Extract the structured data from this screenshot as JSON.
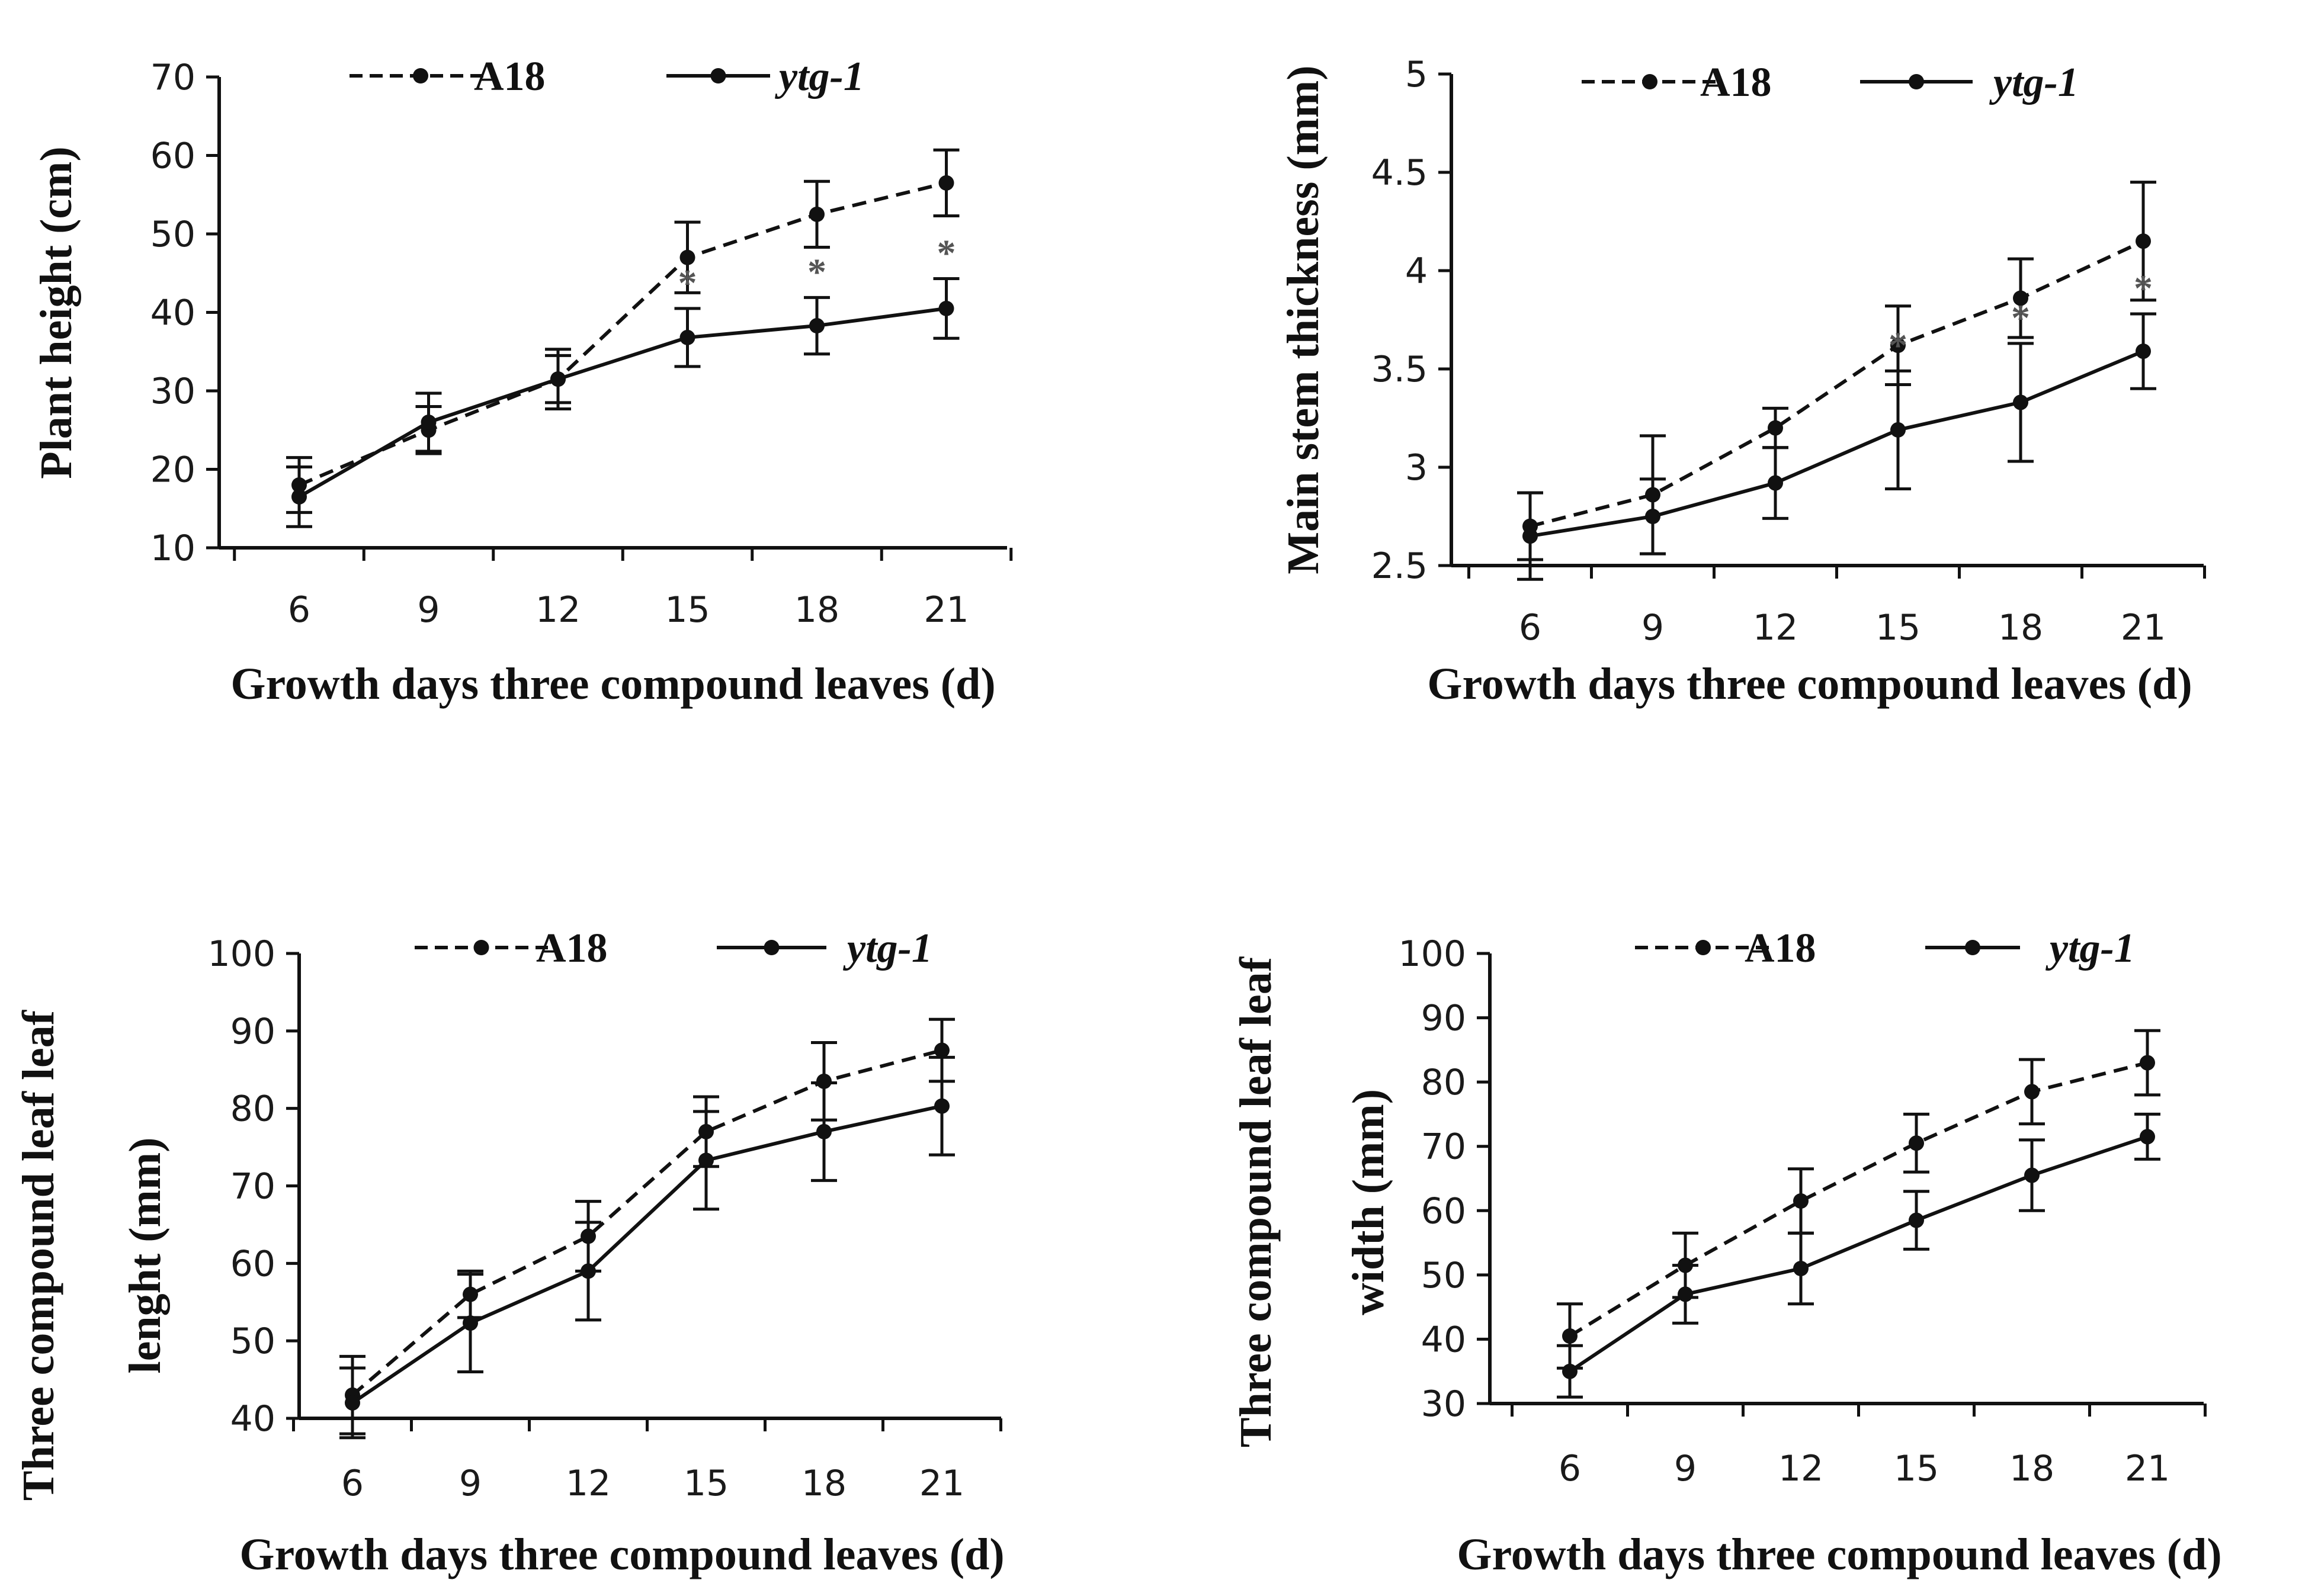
{
  "chart_data": [
    {
      "type": "line",
      "id": "height",
      "x": [
        6,
        9,
        12,
        15,
        18,
        21
      ],
      "xlabel": "Growth days three compound leaves (d)",
      "ylabel": [
        "Plant height (cm)"
      ],
      "ylim": [
        10,
        70
      ],
      "yticks": [
        10,
        20,
        30,
        40,
        50,
        60,
        70
      ],
      "legend": "top-center",
      "series": [
        {
          "name": "A18",
          "style": "dashed",
          "values": [
            18,
            25,
            31.5,
            47,
            52.5,
            56.5
          ],
          "err": [
            3.5,
            3,
            3,
            4.5,
            4.2,
            4.2
          ]
        },
        {
          "name": "ytg-1",
          "style": "solid",
          "italic": true,
          "values": [
            16.5,
            26,
            31.5,
            36.8,
            38.3,
            40.5
          ],
          "err": [
            3.8,
            3.7,
            3.8,
            3.7,
            3.6,
            3.8
          ]
        }
      ],
      "significance": [
        {
          "x": 15,
          "label": "*"
        },
        {
          "x": 18,
          "label": "*"
        },
        {
          "x": 21,
          "label": "*"
        }
      ]
    },
    {
      "type": "line",
      "id": "stem",
      "x": [
        6,
        9,
        12,
        15,
        18,
        21
      ],
      "xlabel": "Growth days three compound leaves (d)",
      "ylabel": [
        "Main stem thickness (mm)"
      ],
      "ylim": [
        2.5,
        5
      ],
      "yticks": [
        2.5,
        3,
        3.5,
        4,
        4.5,
        5
      ],
      "legend": "top-center",
      "series": [
        {
          "name": "A18",
          "style": "dashed",
          "values": [
            2.7,
            2.86,
            3.2,
            3.62,
            3.86,
            4.15
          ],
          "err": [
            0.17,
            0.3,
            0.1,
            0.2,
            0.2,
            0.3
          ]
        },
        {
          "name": "ytg-1",
          "style": "solid",
          "italic": true,
          "values": [
            2.65,
            2.75,
            2.92,
            3.19,
            3.33,
            3.59
          ],
          "err": [
            0.22,
            0.19,
            0.18,
            0.3,
            0.3,
            0.19
          ]
        }
      ],
      "significance": [
        {
          "x": 15,
          "label": "*"
        },
        {
          "x": 18,
          "label": "*"
        },
        {
          "x": 21,
          "label": "*"
        }
      ]
    },
    {
      "type": "line",
      "id": "length",
      "x": [
        6,
        9,
        12,
        15,
        18,
        21
      ],
      "xlabel": "Growth days three compound leaves (d)",
      "ylabel": [
        "Three compound leaf leaf",
        "lenght (mm)"
      ],
      "ylim": [
        40,
        100
      ],
      "yticks": [
        40,
        50,
        60,
        70,
        80,
        90,
        100
      ],
      "legend": "top-center",
      "series": [
        {
          "name": "A18",
          "style": "dashed",
          "values": [
            43,
            56,
            63.5,
            77,
            83.5,
            87.5
          ],
          "err": [
            5,
            3,
            4.5,
            4.5,
            5,
            4
          ]
        },
        {
          "name": "ytg-1",
          "style": "solid",
          "italic": true,
          "values": [
            42,
            52.3,
            59,
            73.3,
            77,
            80.3
          ],
          "err": [
            4.5,
            6.3,
            6.3,
            6.3,
            6.3,
            6.3
          ]
        }
      ],
      "significance": []
    },
    {
      "type": "line",
      "id": "width",
      "x": [
        6,
        9,
        12,
        15,
        18,
        21
      ],
      "xlabel": "Growth days three compound leaves (d)",
      "ylabel": [
        "Three compound leaf leaf",
        "width (mm)"
      ],
      "ylim": [
        30,
        100
      ],
      "yticks": [
        30,
        40,
        50,
        60,
        70,
        80,
        90,
        100
      ],
      "legend": "top-center",
      "series": [
        {
          "name": "A18",
          "style": "dashed",
          "values": [
            40.5,
            51.5,
            61.5,
            70.5,
            78.5,
            83
          ],
          "err": [
            5,
            5,
            5,
            4.5,
            5,
            5
          ]
        },
        {
          "name": "ytg-1",
          "style": "solid",
          "italic": true,
          "values": [
            35,
            47,
            51,
            58.5,
            65.5,
            71.5
          ],
          "err": [
            4,
            4.5,
            5.5,
            4.5,
            5.5,
            3.5
          ]
        }
      ],
      "significance": []
    }
  ],
  "colors": {
    "line": "#111111",
    "sig": "#555555"
  }
}
